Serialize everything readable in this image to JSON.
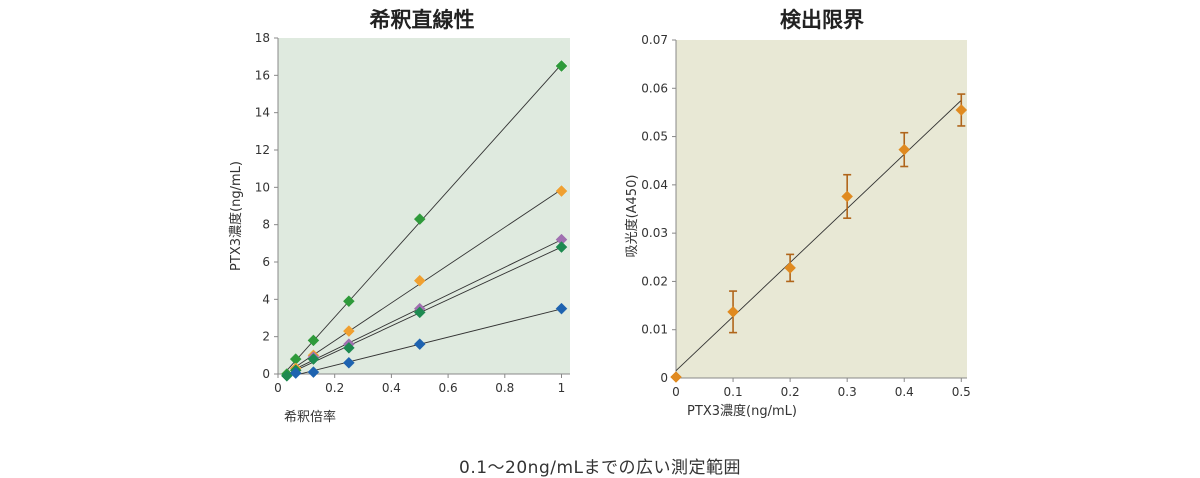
{
  "caption": "0.1～20ng/mLまでの広い測定範囲",
  "chart_data": [
    {
      "type": "scatter",
      "title": "希釈直線性",
      "xlabel": "希釈倍率",
      "ylabel": "PTX3濃度(ng/mL)",
      "xlim": [
        0,
        1.03
      ],
      "ylim": [
        0,
        18
      ],
      "xticks": [
        "0",
        "0.2",
        "0.4",
        "0.6",
        "0.8",
        "1"
      ],
      "yticks": [
        "0",
        "2",
        "4",
        "6",
        "8",
        "10",
        "12",
        "14",
        "16",
        "18"
      ],
      "background": "#dfeadf",
      "grid": false,
      "trendlines": true,
      "series": [
        {
          "color": "#2e9a3a",
          "x": [
            0.03125,
            0.0625,
            0.125,
            0.25,
            0.5,
            1
          ],
          "y": [
            0.0,
            0.8,
            1.8,
            3.9,
            8.3,
            16.5
          ]
        },
        {
          "color": "#f0a030",
          "x": [
            0.0625,
            0.125,
            0.25,
            0.5,
            1
          ],
          "y": [
            0.3,
            1.0,
            2.3,
            5.0,
            9.8
          ]
        },
        {
          "color": "#a070b0",
          "x": [
            0.0625,
            0.125,
            0.25,
            0.5,
            1
          ],
          "y": [
            0.2,
            0.9,
            1.6,
            3.5,
            7.2
          ]
        },
        {
          "color": "#1d8a50",
          "x": [
            0.03125,
            0.0625,
            0.125,
            0.25,
            0.5,
            1
          ],
          "y": [
            -0.1,
            0.2,
            0.8,
            1.4,
            3.3,
            6.8
          ]
        },
        {
          "color": "#1e63b0",
          "x": [
            0.0625,
            0.125,
            0.25,
            0.5,
            1
          ],
          "y": [
            0.05,
            0.1,
            0.6,
            1.6,
            3.5
          ]
        }
      ]
    },
    {
      "type": "scatter",
      "title": "検出限界",
      "xlabel": "PTX3濃度(ng/mL)",
      "ylabel": "吸光度(A450)",
      "xlim": [
        0,
        0.51
      ],
      "ylim": [
        0,
        0.07
      ],
      "xticks": [
        "0",
        "0.1",
        "0.2",
        "0.3",
        "0.4",
        "0.5"
      ],
      "yticks": [
        "0",
        "0.01",
        "0.02",
        "0.03",
        "0.04",
        "0.05",
        "0.06",
        "0.07"
      ],
      "background": "#e8e8d5",
      "grid": false,
      "trendlines": true,
      "series": [
        {
          "color": "#e08a20",
          "x": [
            0,
            0.1,
            0.2,
            0.3,
            0.4,
            0.5
          ],
          "y": [
            0.0002,
            0.0137,
            0.0228,
            0.0376,
            0.0473,
            0.0555
          ],
          "err": [
            0,
            0.0043,
            0.0028,
            0.0045,
            0.0035,
            0.0033
          ]
        }
      ]
    }
  ]
}
